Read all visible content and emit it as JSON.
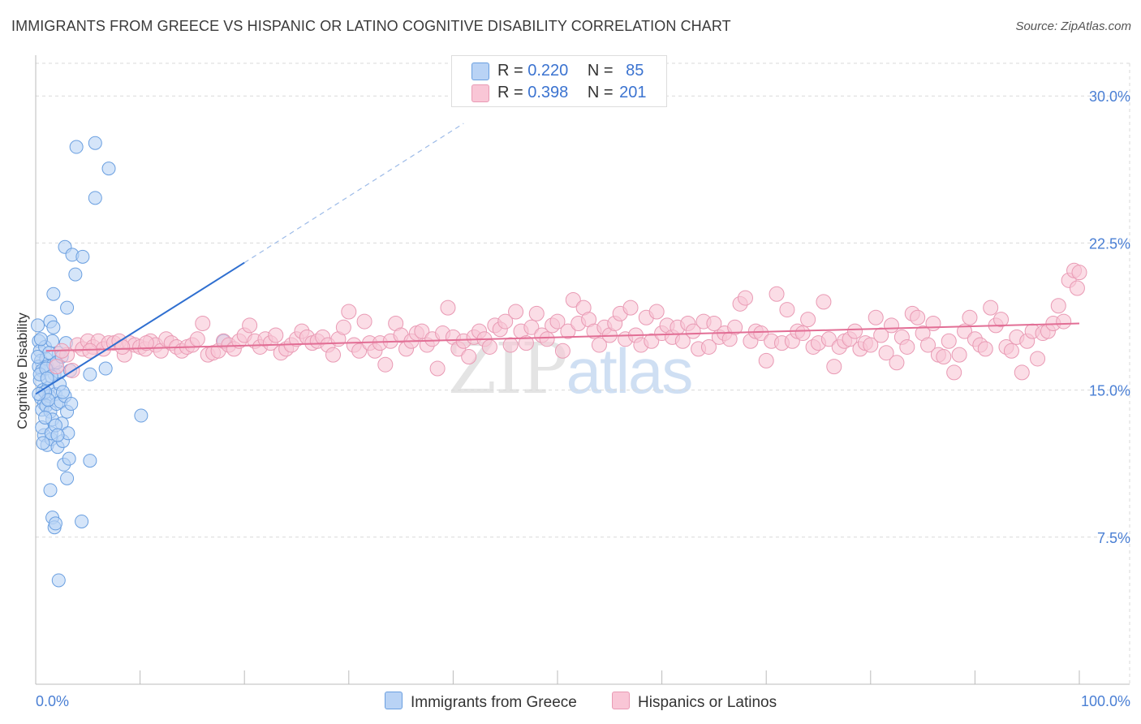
{
  "header": {
    "title": "IMMIGRANTS FROM GREECE VS HISPANIC OR LATINO COGNITIVE DISABILITY CORRELATION CHART",
    "source": "Source: ZipAtlas.com"
  },
  "watermark": {
    "zip": "ZIP",
    "atlas": "atlas"
  },
  "legend_top": {
    "rows": [
      {
        "r_label": "R =",
        "r_value": "0.220",
        "n_label": "N =",
        "n_value": "85"
      },
      {
        "r_label": "R =",
        "r_value": "0.398",
        "n_label": "N =",
        "n_value": "201"
      }
    ]
  },
  "legend_bottom": {
    "greece": "Immigrants from Greece",
    "hispanic": "Hispanics or Latinos"
  },
  "colors": {
    "greece_fill": "#b9d3f5",
    "greece_stroke": "#6a9fe0",
    "greece_line": "#2f6fd0",
    "hispanic_fill": "#f9c6d6",
    "hispanic_stroke": "#e99ab4",
    "hispanic_line": "#e26e95",
    "tick_text": "#4a7fd4",
    "grid": "#d9d9d9"
  },
  "chart_data": {
    "type": "scatter",
    "title": "IMMIGRANTS FROM GREECE VS HISPANIC OR LATINO COGNITIVE DISABILITY CORRELATION CHART",
    "xlabel": "",
    "ylabel": "Cognitive Disability",
    "xlim": [
      0,
      100
    ],
    "ylim": [
      0,
      31.5
    ],
    "x_tick_labels": [
      "0.0%",
      "100.0%"
    ],
    "y_ticks": [
      7.5,
      15.0,
      22.5,
      30.0
    ],
    "y_tick_labels": [
      "7.5%",
      "15.0%",
      "22.5%",
      "30.0%"
    ],
    "grid": true,
    "legend_position": "top-center",
    "series": [
      {
        "name": "Immigrants from Greece",
        "trend": {
          "x0": 0,
          "y0": 14.8,
          "x1": 20,
          "y1": 21.5,
          "dashed_to_x": 41,
          "dashed_to_y": 28.6
        },
        "points": [
          [
            0.2,
            18.3
          ],
          [
            0.3,
            17.5
          ],
          [
            0.4,
            17.0
          ],
          [
            0.5,
            16.5
          ],
          [
            0.3,
            16.2
          ],
          [
            0.6,
            16.0
          ],
          [
            0.4,
            15.5
          ],
          [
            0.7,
            15.0
          ],
          [
            0.5,
            14.6
          ],
          [
            0.8,
            14.3
          ],
          [
            0.6,
            14.0
          ],
          [
            0.9,
            17.2
          ],
          [
            1.0,
            16.6
          ],
          [
            1.1,
            16.2
          ],
          [
            1.2,
            15.1
          ],
          [
            1.3,
            14.7
          ],
          [
            1.0,
            14.2
          ],
          [
            1.4,
            13.9
          ],
          [
            0.8,
            12.7
          ],
          [
            1.1,
            12.2
          ],
          [
            1.5,
            12.5
          ],
          [
            1.6,
            17.5
          ],
          [
            1.7,
            16.3
          ],
          [
            1.8,
            15.8
          ],
          [
            1.9,
            14.8
          ],
          [
            2.0,
            14.3
          ],
          [
            1.6,
            13.5
          ],
          [
            2.1,
            12.1
          ],
          [
            2.2,
            16.9
          ],
          [
            2.3,
            15.9
          ],
          [
            2.4,
            14.4
          ],
          [
            2.5,
            13.3
          ],
          [
            2.6,
            12.4
          ],
          [
            2.7,
            11.2
          ],
          [
            2.8,
            14.7
          ],
          [
            3.0,
            13.9
          ],
          [
            3.1,
            12.8
          ],
          [
            3.2,
            11.5
          ],
          [
            3.4,
            14.3
          ],
          [
            3.0,
            10.5
          ],
          [
            1.4,
            18.5
          ],
          [
            1.7,
            19.9
          ],
          [
            3.0,
            19.2
          ],
          [
            2.8,
            22.3
          ],
          [
            3.5,
            21.9
          ],
          [
            3.8,
            20.9
          ],
          [
            4.5,
            21.8
          ],
          [
            3.9,
            27.4
          ],
          [
            5.7,
            27.6
          ],
          [
            5.7,
            24.8
          ],
          [
            7.0,
            26.3
          ],
          [
            1.4,
            9.9
          ],
          [
            1.6,
            8.5
          ],
          [
            1.8,
            8.0
          ],
          [
            1.9,
            8.2
          ],
          [
            4.4,
            8.3
          ],
          [
            2.2,
            5.3
          ],
          [
            5.2,
            11.4
          ],
          [
            5.2,
            15.8
          ],
          [
            6.7,
            16.1
          ],
          [
            10.1,
            13.7
          ],
          [
            0.9,
            14.9
          ],
          [
            0.6,
            13.1
          ],
          [
            1.3,
            16.9
          ],
          [
            2.0,
            16.4
          ],
          [
            1.5,
            12.8
          ],
          [
            2.9,
            17.4
          ],
          [
            0.4,
            15.8
          ],
          [
            0.2,
            16.7
          ],
          [
            1.2,
            14.5
          ],
          [
            1.9,
            13.2
          ],
          [
            2.3,
            15.3
          ],
          [
            0.7,
            12.3
          ],
          [
            1.0,
            16.1
          ],
          [
            2.6,
            14.9
          ],
          [
            0.5,
            17.6
          ],
          [
            1.7,
            18.2
          ],
          [
            3.3,
            16.0
          ],
          [
            0.9,
            13.6
          ],
          [
            1.5,
            15.7
          ],
          [
            2.1,
            12.7
          ],
          [
            2.5,
            16.7
          ],
          [
            0.3,
            14.8
          ],
          [
            1.1,
            15.6
          ],
          [
            18.0,
            17.5
          ]
        ]
      },
      {
        "name": "Hispanics or Latinos",
        "trend": {
          "x0": 1,
          "y0": 17.0,
          "x1": 100,
          "y1": 18.4
        },
        "points": [
          [
            2.0,
            16.2
          ],
          [
            3.0,
            16.8
          ],
          [
            3.5,
            16.0
          ],
          [
            4.0,
            17.3
          ],
          [
            4.5,
            17.1
          ],
          [
            5.0,
            17.5
          ],
          [
            5.5,
            17.2
          ],
          [
            6.0,
            17.5
          ],
          [
            6.5,
            17.1
          ],
          [
            7.0,
            17.4
          ],
          [
            7.5,
            17.4
          ],
          [
            8.0,
            17.5
          ],
          [
            8.5,
            16.8
          ],
          [
            9.0,
            17.4
          ],
          [
            9.5,
            17.3
          ],
          [
            10.0,
            17.2
          ],
          [
            10.5,
            17.1
          ],
          [
            11.0,
            17.5
          ],
          [
            11.5,
            17.3
          ],
          [
            12.0,
            17.0
          ],
          [
            12.5,
            17.6
          ],
          [
            13.0,
            17.4
          ],
          [
            13.5,
            17.2
          ],
          [
            14.0,
            17.0
          ],
          [
            14.5,
            17.2
          ],
          [
            15.0,
            17.3
          ],
          [
            15.5,
            17.6
          ],
          [
            16.0,
            18.4
          ],
          [
            16.5,
            16.8
          ],
          [
            17.0,
            16.9
          ],
          [
            17.5,
            17.0
          ],
          [
            18.0,
            17.5
          ],
          [
            18.5,
            17.3
          ],
          [
            19.0,
            17.1
          ],
          [
            19.5,
            17.5
          ],
          [
            20.0,
            17.8
          ],
          [
            20.5,
            18.3
          ],
          [
            21.0,
            17.5
          ],
          [
            21.5,
            17.2
          ],
          [
            22.0,
            17.6
          ],
          [
            22.5,
            17.4
          ],
          [
            23.0,
            17.8
          ],
          [
            23.5,
            16.9
          ],
          [
            24.0,
            17.1
          ],
          [
            24.5,
            17.3
          ],
          [
            25.0,
            17.6
          ],
          [
            25.5,
            18.0
          ],
          [
            26.0,
            17.7
          ],
          [
            26.5,
            17.4
          ],
          [
            27.0,
            17.5
          ],
          [
            27.5,
            17.7
          ],
          [
            28.0,
            17.3
          ],
          [
            28.5,
            16.8
          ],
          [
            29.0,
            17.6
          ],
          [
            29.5,
            18.2
          ],
          [
            30.0,
            19.0
          ],
          [
            30.5,
            17.3
          ],
          [
            31.0,
            17.0
          ],
          [
            31.5,
            18.5
          ],
          [
            32.0,
            17.4
          ],
          [
            32.5,
            17.0
          ],
          [
            33.0,
            17.4
          ],
          [
            33.5,
            16.3
          ],
          [
            34.0,
            17.5
          ],
          [
            34.5,
            18.4
          ],
          [
            35.0,
            17.8
          ],
          [
            35.5,
            17.1
          ],
          [
            36.0,
            17.5
          ],
          [
            36.5,
            17.9
          ],
          [
            37.0,
            18.0
          ],
          [
            37.5,
            17.3
          ],
          [
            38.0,
            17.6
          ],
          [
            38.5,
            16.1
          ],
          [
            39.0,
            17.9
          ],
          [
            39.5,
            19.2
          ],
          [
            40.0,
            17.7
          ],
          [
            40.5,
            17.1
          ],
          [
            41.0,
            17.5
          ],
          [
            41.5,
            16.7
          ],
          [
            42.0,
            17.7
          ],
          [
            42.5,
            18.0
          ],
          [
            43.0,
            17.6
          ],
          [
            43.5,
            17.2
          ],
          [
            44.0,
            18.3
          ],
          [
            44.5,
            18.1
          ],
          [
            45.0,
            18.5
          ],
          [
            45.5,
            17.3
          ],
          [
            46.0,
            19.0
          ],
          [
            46.5,
            18.0
          ],
          [
            47.0,
            17.4
          ],
          [
            47.5,
            18.2
          ],
          [
            48.0,
            18.9
          ],
          [
            48.5,
            17.8
          ],
          [
            49.0,
            17.6
          ],
          [
            49.5,
            18.3
          ],
          [
            50.0,
            18.5
          ],
          [
            50.5,
            17.0
          ],
          [
            51.0,
            18.0
          ],
          [
            51.5,
            19.6
          ],
          [
            52.0,
            18.4
          ],
          [
            52.5,
            19.2
          ],
          [
            53.0,
            18.6
          ],
          [
            53.5,
            18.0
          ],
          [
            54.0,
            17.3
          ],
          [
            54.5,
            18.2
          ],
          [
            55.0,
            17.8
          ],
          [
            55.5,
            18.4
          ],
          [
            56.0,
            18.9
          ],
          [
            56.5,
            17.6
          ],
          [
            57.0,
            19.2
          ],
          [
            57.5,
            17.8
          ],
          [
            58.0,
            17.3
          ],
          [
            58.5,
            18.7
          ],
          [
            59.0,
            17.5
          ],
          [
            59.5,
            19.0
          ],
          [
            60.0,
            17.9
          ],
          [
            60.5,
            18.3
          ],
          [
            61.0,
            17.7
          ],
          [
            61.5,
            18.2
          ],
          [
            62.0,
            17.5
          ],
          [
            62.5,
            18.4
          ],
          [
            63.0,
            18.0
          ],
          [
            63.5,
            17.1
          ],
          [
            64.0,
            18.5
          ],
          [
            64.5,
            17.2
          ],
          [
            65.0,
            18.4
          ],
          [
            65.5,
            17.7
          ],
          [
            66.0,
            17.9
          ],
          [
            66.5,
            17.6
          ],
          [
            67.0,
            18.2
          ],
          [
            67.5,
            19.4
          ],
          [
            68.0,
            19.7
          ],
          [
            68.5,
            17.5
          ],
          [
            69.0,
            18.0
          ],
          [
            69.5,
            17.9
          ],
          [
            70.0,
            16.5
          ],
          [
            70.5,
            17.5
          ],
          [
            71.0,
            19.9
          ],
          [
            71.5,
            17.4
          ],
          [
            72.0,
            19.1
          ],
          [
            72.5,
            17.5
          ],
          [
            73.0,
            18.0
          ],
          [
            73.5,
            17.9
          ],
          [
            74.0,
            18.6
          ],
          [
            74.5,
            17.2
          ],
          [
            75.0,
            17.4
          ],
          [
            75.5,
            19.5
          ],
          [
            76.0,
            17.6
          ],
          [
            76.5,
            16.2
          ],
          [
            77.0,
            17.2
          ],
          [
            77.5,
            17.5
          ],
          [
            78.0,
            17.6
          ],
          [
            78.5,
            18.0
          ],
          [
            79.0,
            17.1
          ],
          [
            79.5,
            17.4
          ],
          [
            80.0,
            17.3
          ],
          [
            80.5,
            18.7
          ],
          [
            81.0,
            17.8
          ],
          [
            81.5,
            16.9
          ],
          [
            82.0,
            18.3
          ],
          [
            82.5,
            16.4
          ],
          [
            83.0,
            17.7
          ],
          [
            83.5,
            17.2
          ],
          [
            84.0,
            18.9
          ],
          [
            84.5,
            18.7
          ],
          [
            85.0,
            17.9
          ],
          [
            85.5,
            17.3
          ],
          [
            86.0,
            18.4
          ],
          [
            86.5,
            16.8
          ],
          [
            87.0,
            16.7
          ],
          [
            87.5,
            17.5
          ],
          [
            88.0,
            15.9
          ],
          [
            88.5,
            16.8
          ],
          [
            89.0,
            18.0
          ],
          [
            89.5,
            18.7
          ],
          [
            90.0,
            17.6
          ],
          [
            90.5,
            17.3
          ],
          [
            91.0,
            17.1
          ],
          [
            91.5,
            19.2
          ],
          [
            92.0,
            18.3
          ],
          [
            92.5,
            18.6
          ],
          [
            93.0,
            17.2
          ],
          [
            93.5,
            17.0
          ],
          [
            94.0,
            17.7
          ],
          [
            94.5,
            15.9
          ],
          [
            95.0,
            17.5
          ],
          [
            95.5,
            18.0
          ],
          [
            96.0,
            16.6
          ],
          [
            96.5,
            17.9
          ],
          [
            97.0,
            18.0
          ],
          [
            97.5,
            18.4
          ],
          [
            98.0,
            19.3
          ],
          [
            98.5,
            18.5
          ],
          [
            99.0,
            20.6
          ],
          [
            99.5,
            21.1
          ],
          [
            100.0,
            21.0
          ],
          [
            99.8,
            20.2
          ],
          [
            2.5,
            17.0
          ],
          [
            5.2,
            17.0
          ],
          [
            8.3,
            17.2
          ],
          [
            10.6,
            17.4
          ]
        ]
      }
    ]
  }
}
